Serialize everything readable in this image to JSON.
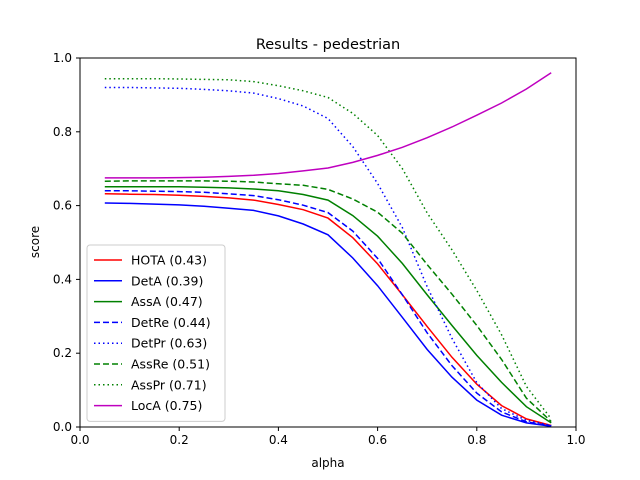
{
  "chart_data": {
    "type": "line",
    "title": "Results - pedestrian",
    "xlabel": "alpha",
    "ylabel": "score",
    "xlim": [
      0,
      1
    ],
    "ylim": [
      0,
      1
    ],
    "xticks": [
      "0.0",
      "0.2",
      "0.4",
      "0.6",
      "0.8",
      "1.0"
    ],
    "yticks": [
      "0.0",
      "0.2",
      "0.4",
      "0.6",
      "0.8",
      "1.0"
    ],
    "grid": false,
    "legend_position": "lower-left",
    "x": [
      0.05,
      0.1,
      0.15,
      0.2,
      0.25,
      0.3,
      0.35,
      0.4,
      0.45,
      0.5,
      0.55,
      0.6,
      0.65,
      0.7,
      0.75,
      0.8,
      0.85,
      0.9,
      0.95
    ],
    "series": [
      {
        "name": "HOTA (0.43)",
        "color": "#ff0000",
        "style": "solid",
        "values": [
          0.632,
          0.631,
          0.63,
          0.628,
          0.625,
          0.621,
          0.615,
          0.603,
          0.589,
          0.566,
          0.513,
          0.442,
          0.358,
          0.272,
          0.189,
          0.116,
          0.058,
          0.022,
          0.004
        ]
      },
      {
        "name": "DetA (0.39)",
        "color": "#0000ff",
        "style": "solid",
        "values": [
          0.607,
          0.606,
          0.604,
          0.602,
          0.598,
          0.593,
          0.587,
          0.572,
          0.55,
          0.521,
          0.458,
          0.383,
          0.297,
          0.21,
          0.135,
          0.073,
          0.032,
          0.011,
          0.002
        ]
      },
      {
        "name": "AssA (0.47)",
        "color": "#008000",
        "style": "solid",
        "values": [
          0.651,
          0.651,
          0.651,
          0.651,
          0.65,
          0.648,
          0.645,
          0.64,
          0.63,
          0.615,
          0.573,
          0.517,
          0.443,
          0.358,
          0.275,
          0.194,
          0.121,
          0.055,
          0.011
        ]
      },
      {
        "name": "DetRe (0.44)",
        "color": "#0000ff",
        "style": "dashed",
        "values": [
          0.64,
          0.64,
          0.639,
          0.638,
          0.636,
          0.632,
          0.627,
          0.616,
          0.601,
          0.581,
          0.531,
          0.457,
          0.358,
          0.255,
          0.166,
          0.092,
          0.041,
          0.014,
          0.003
        ]
      },
      {
        "name": "DetPr (0.63)",
        "color": "#0000ff",
        "style": "dotted",
        "values": [
          0.92,
          0.92,
          0.919,
          0.918,
          0.915,
          0.911,
          0.905,
          0.89,
          0.87,
          0.836,
          0.76,
          0.66,
          0.54,
          0.38,
          0.24,
          0.12,
          0.05,
          0.018,
          0.004
        ]
      },
      {
        "name": "AssRe (0.51)",
        "color": "#008000",
        "style": "dashed",
        "values": [
          0.666,
          0.667,
          0.667,
          0.667,
          0.667,
          0.666,
          0.664,
          0.659,
          0.655,
          0.644,
          0.618,
          0.582,
          0.525,
          0.44,
          0.36,
          0.275,
          0.183,
          0.078,
          0.015
        ]
      },
      {
        "name": "AssPr (0.71)",
        "color": "#008000",
        "style": "dotted",
        "values": [
          0.944,
          0.944,
          0.944,
          0.943,
          0.942,
          0.941,
          0.936,
          0.925,
          0.911,
          0.893,
          0.85,
          0.79,
          0.7,
          0.58,
          0.48,
          0.37,
          0.25,
          0.11,
          0.022
        ]
      },
      {
        "name": "LocA (0.75)",
        "color": "#bf00bf",
        "style": "solid",
        "values": [
          0.675,
          0.675,
          0.675,
          0.676,
          0.677,
          0.679,
          0.682,
          0.687,
          0.694,
          0.702,
          0.717,
          0.736,
          0.758,
          0.784,
          0.813,
          0.845,
          0.878,
          0.916,
          0.96
        ]
      }
    ]
  }
}
